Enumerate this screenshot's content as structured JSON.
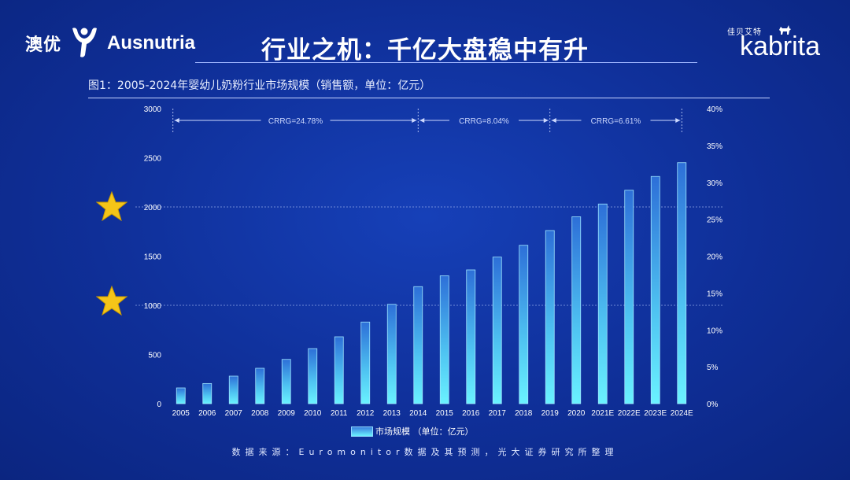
{
  "brand_left": {
    "name_cn": "澳优",
    "name_en": "Ausnutria"
  },
  "brand_right": {
    "name_cn": "佳贝艾特",
    "name_en": "kabrita"
  },
  "page_title": "行业之机：千亿大盘稳中有升",
  "colors": {
    "background": "#0f2f98",
    "bar_top": "#2d6fd8",
    "bar_bottom": "#6af2ff",
    "star": "#f5c518",
    "annotation": "#cdd9ff"
  },
  "icons": {
    "left_logo": "person-jumping-icon",
    "right_logo": "goat-icon",
    "marker": "star-icon"
  },
  "chart_data": {
    "type": "bar",
    "title": "图1：2005-2024年婴幼儿奶粉行业市场规模（销售额，单位：亿元）",
    "categories": [
      "2005",
      "2006",
      "2007",
      "2008",
      "2009",
      "2010",
      "2011",
      "2012",
      "2013",
      "2014",
      "2015",
      "2016",
      "2017",
      "2018",
      "2019",
      "2020",
      "2021E",
      "2022E",
      "2023E",
      "2024E"
    ],
    "series": [
      {
        "name": "市场规模 （单位：亿元）",
        "values": [
          160,
          205,
          280,
          360,
          450,
          560,
          680,
          830,
          1010,
          1190,
          1300,
          1360,
          1490,
          1610,
          1760,
          1900,
          2030,
          2170,
          2310,
          2450
        ]
      }
    ],
    "ylim": [
      0,
      3000
    ],
    "yticks": [
      "0",
      "500",
      "1000",
      "1500",
      "2000",
      "2500",
      "3000"
    ],
    "y2lim": [
      0,
      40
    ],
    "y2ticks": [
      "0%",
      "5%",
      "10%",
      "15%",
      "20%",
      "25%",
      "30%",
      "35%",
      "40%"
    ],
    "reference_lines": [
      1000,
      2000
    ],
    "annotations": [
      {
        "label": "CRRG=24.78%",
        "from": "2005",
        "to": "2014"
      },
      {
        "label": "CRRG=8.04%",
        "from": "2014",
        "to": "2019"
      },
      {
        "label": "CRRG=6.61%",
        "from": "2019",
        "to": "2024E"
      }
    ],
    "legend": "bottom-center",
    "grid": false
  },
  "source": "数据来源：Euromonitor数据及其预测，光大证券研究所整理"
}
